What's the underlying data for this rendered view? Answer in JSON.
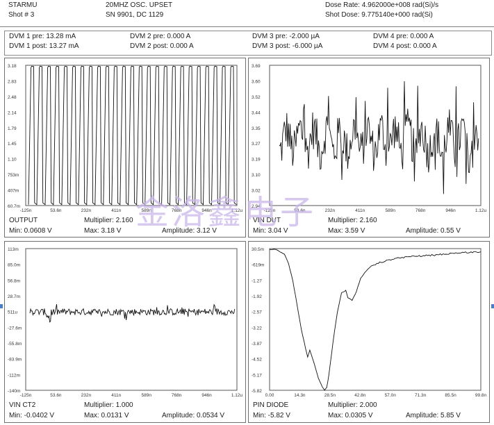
{
  "header": {
    "left_line1": "STARMU",
    "left_line2": "Shot # 3",
    "mid_line1": "20MHZ OSC. UPSET",
    "mid_line2": "SN 9901, DC 1129",
    "right_line1": "Dose Rate: 4.962000e+008 rad(Si)/s",
    "right_line2": "Shot Dose: 9.775140e+000 rad(Si)"
  },
  "dvm": [
    {
      "pre": "DVM 1 pre: 13.28 mA",
      "post": "DVM 1 post: 13.27 mA"
    },
    {
      "pre": "DVM 2 pre: 0.000 A",
      "post": "DVM 2 post: 0.000 A"
    },
    {
      "pre": "DVM 3 pre: -2.000 µA",
      "post": "DVM 3 post: -6.000 µA"
    },
    {
      "pre": "DVM 4 pre: 0.000 A",
      "post": "DVM 4 post: 0.000 A"
    }
  ],
  "watermark": "金洛鑫电子",
  "chart_data": [
    {
      "type": "line",
      "name": "OUTPUT",
      "multiplier": "Multiplier: 2.160",
      "min": "Min: 0.0608 V",
      "max": "Max: 3.18 V",
      "amplitude": "Amplitude: 3.12 V",
      "waveform": "square-oscillation",
      "cycles": 25,
      "xlim": [
        -1.25e-07,
        1.12e-06
      ],
      "ylim": [
        0.0607,
        3.18
      ],
      "yvalues": [
        0.0607,
        3.18
      ],
      "x_ticks": [
        "-125n",
        "53.6n",
        "232n",
        "411n",
        "589n",
        "768n",
        "946n",
        "1.12u"
      ],
      "y_ticks": [
        "3.18",
        "2.83",
        "2.48",
        "2.14",
        "1.79",
        "1.45",
        "1.10",
        "753m",
        "407m",
        "60.7m"
      ]
    },
    {
      "type": "line",
      "name": "VIN DUT",
      "multiplier": "Multiplier: 2.160",
      "min": "Min: 3.04 V",
      "max": "Max: 3.59 V",
      "amplitude": "Amplitude: 0.55 V",
      "waveform": "noisy-oscillation",
      "center": 3.3,
      "xlim": [
        -1.25e-07,
        1.12e-06
      ],
      "ylim": [
        2.96,
        3.69
      ],
      "x_ticks": [
        "-125n",
        "53.6n",
        "232n",
        "411n",
        "589n",
        "768n",
        "946n",
        "1.12u"
      ],
      "y_ticks": [
        "3.69",
        "3.60",
        "3.52",
        "3.44",
        "3.35",
        "3.27",
        "3.19",
        "3.10",
        "3.02",
        "2.94"
      ]
    },
    {
      "type": "line",
      "name": "VIN CT2",
      "multiplier": "Multiplier: 1.000",
      "min": "Min: -0.0402 V",
      "max": "Max: 0.0131 V",
      "amplitude": "Amplitude: 0.0534 V",
      "waveform": "flat-noise",
      "center": 0.0,
      "xlim": [
        -1.25e-07,
        1.12e-06
      ],
      "ylim": [
        -0.14,
        0.113
      ],
      "x_ticks": [
        "-125n",
        "53.6n",
        "232n",
        "411n",
        "589n",
        "768n",
        "946n",
        "1.12u"
      ],
      "y_ticks": [
        "113m",
        "85.0m",
        "56.8m",
        "28.7m",
        "511u",
        "-27.6m",
        "-55.8m",
        "-83.9m",
        "-112m",
        "-140m"
      ]
    },
    {
      "type": "line",
      "name": "PIN DIODE",
      "multiplier": "Multiplier: 2.000",
      "min": "Min: -5.82 V",
      "max": "Max: 0.0305 V",
      "amplitude": "Amplitude: 5.85 V",
      "waveform": "pulse-dip",
      "xlim": [
        0,
        9.98e-08
      ],
      "ylim": [
        -5.82,
        0.0305
      ],
      "x": [
        0,
        3e-09,
        7e-09,
        9e-09,
        1.1e-08,
        1.3e-08,
        1.5e-08,
        1.7e-08,
        1.8e-08,
        1.9e-08,
        2.1e-08,
        2.3e-08,
        2.5e-08,
        2.6e-08,
        2.7e-08,
        2.8e-08,
        3e-08,
        3.2e-08,
        3.4e-08,
        3.6e-08,
        3.7e-08,
        3.9e-08,
        4.1e-08,
        4.3e-08,
        4.5e-08,
        4.8e-08,
        5.2e-08,
        5.8e-08,
        6.6e-08,
        7.6e-08,
        8.8e-08,
        9.98e-08
      ],
      "y": [
        0.0,
        0.0,
        -0.2,
        -0.6,
        -1.3,
        -2.3,
        -3.3,
        -4.1,
        -4.45,
        -4.15,
        -4.7,
        -5.3,
        -5.7,
        -5.82,
        -5.7,
        -5.2,
        -3.8,
        -2.6,
        -1.8,
        -1.7,
        -2.0,
        -2.1,
        -1.75,
        -1.2,
        -0.95,
        -0.7,
        -0.55,
        -0.4,
        -0.3,
        -0.25,
        -0.15,
        -0.1
      ],
      "x_ticks": [
        "0.00",
        "14.3n",
        "28.5n",
        "42.8n",
        "57.0n",
        "71.3n",
        "85.5n",
        "99.8n"
      ],
      "y_ticks": [
        "30.5m",
        "-619m",
        "-1.27",
        "-1.92",
        "-2.57",
        "-3.22",
        "-3.87",
        "-4.52",
        "-5.17",
        "-5.82"
      ]
    }
  ]
}
